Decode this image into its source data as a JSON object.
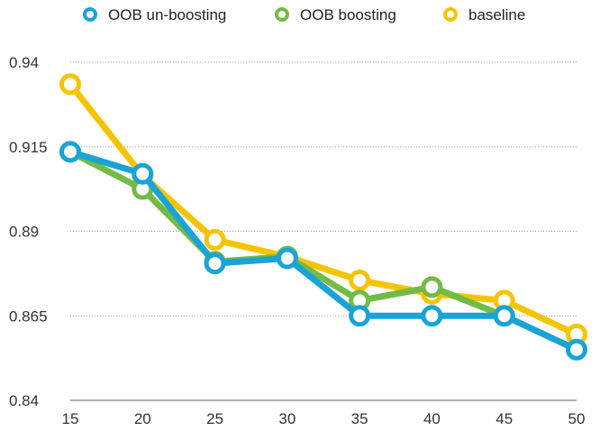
{
  "chart_data": {
    "type": "line",
    "title": "",
    "xlabel": "",
    "ylabel": "",
    "x": [
      15,
      20,
      25,
      30,
      35,
      40,
      45,
      50
    ],
    "x_tick_labels": [
      "15",
      "20",
      "25",
      "30",
      "35",
      "40",
      "45",
      "50"
    ],
    "y_tick_values": [
      0.84,
      0.865,
      0.89,
      0.915,
      0.94
    ],
    "y_tick_labels": [
      "0.84",
      "0.865",
      "0.89",
      "0.915",
      "0.94"
    ],
    "ylim": [
      0.84,
      0.94
    ],
    "grid": true,
    "legend_position": "top",
    "series": [
      {
        "name": "OOB un-boosting",
        "color": "#1aa3d6",
        "values": [
          0.9135,
          0.907,
          0.8805,
          0.882,
          0.865,
          0.865,
          0.865,
          0.855
        ]
      },
      {
        "name": "OOB boosting",
        "color": "#72bb44",
        "values": [
          0.9135,
          0.9025,
          0.881,
          0.8825,
          0.8695,
          0.8735,
          0.865,
          0.855
        ]
      },
      {
        "name": "baseline",
        "color": "#f5c400",
        "values": [
          0.9335,
          0.9065,
          0.8875,
          0.8825,
          0.8755,
          0.8715,
          0.8695,
          0.8595
        ]
      }
    ]
  }
}
